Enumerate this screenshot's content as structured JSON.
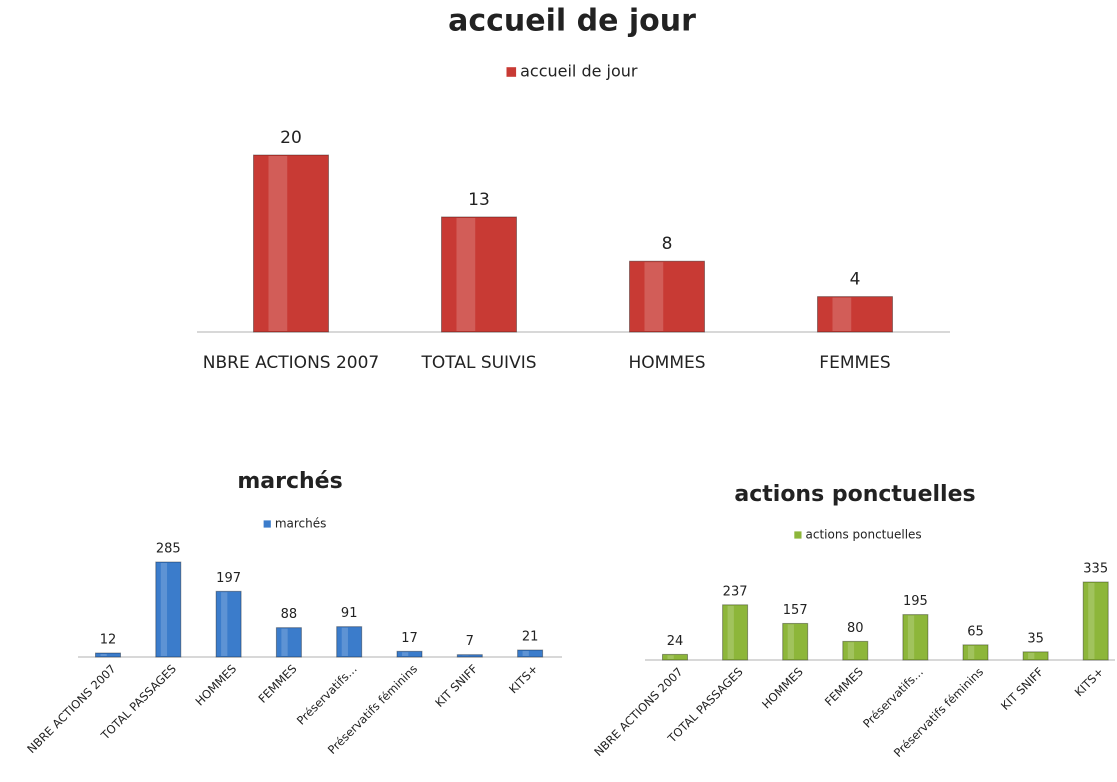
{
  "chart_data": [
    {
      "type": "bar",
      "title": "accueil de jour",
      "legend": "top",
      "categories": [
        "NBRE ACTIONS 2007",
        "TOTAL SUIVIS",
        "HOMMES",
        "FEMMES"
      ],
      "series": [
        {
          "name": "accueil de jour",
          "color": "#c83a34",
          "values": [
            20,
            13,
            8,
            4
          ]
        }
      ]
    },
    {
      "type": "bar",
      "title": "marchés",
      "legend": "top",
      "categories": [
        "NBRE ACTIONS 2007",
        "TOTAL PASSAGES",
        "HOMMES",
        "FEMMES",
        "Préservatifs…",
        "Préservatifs féminins",
        "KIT SNIFF",
        "KITS+"
      ],
      "series": [
        {
          "name": "marchés",
          "color": "#3b7ccb",
          "values": [
            12,
            285,
            197,
            88,
            91,
            17,
            7,
            21
          ]
        }
      ]
    },
    {
      "type": "bar",
      "title": "actions ponctuelles",
      "legend": "top",
      "categories": [
        "NBRE ACTIONS 2007",
        "TOTAL PASSAGES",
        "HOMMES",
        "FEMMES",
        "Préservatifs…",
        "Préservatifs féminins",
        "KIT SNIFF",
        "KITS+"
      ],
      "series": [
        {
          "name": "actions ponctuelles",
          "color": "#8db63a",
          "values": [
            24,
            237,
            157,
            80,
            195,
            65,
            35,
            335
          ]
        }
      ]
    }
  ]
}
